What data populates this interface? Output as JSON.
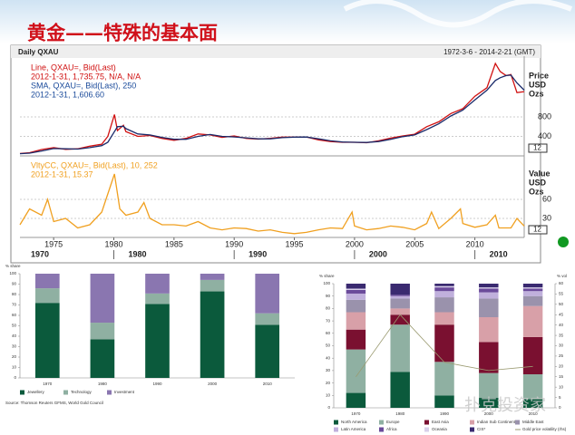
{
  "title": "黄金——特殊的基本面",
  "watermark": "扑克投资家",
  "chart_data": [
    {
      "type": "line",
      "header": "Daily QXAU",
      "date_range": "1972-3-6 - 2014-2-21 (GMT)",
      "y_label_lines": [
        "Price",
        "USD",
        "Ozs"
      ],
      "marker_label": "12",
      "legend_lines": [
        "Line, QXAU=, Bid(Last)",
        "2012-1-31, 1,735.75, N/A, N/A",
        "SMA, QXAU=, Bid(Last), 250",
        "2012-1-31, 1,606.60"
      ],
      "xlim": [
        1972.2,
        2014.1
      ],
      "ylim": [
        0,
        1900
      ],
      "yticks": [
        400,
        800
      ],
      "grid": true,
      "series": [
        {
          "name": "Line",
          "color": "#d01010",
          "x": [
            1972.2,
            1973,
            1974,
            1975,
            1976,
            1977,
            1978,
            1979,
            1979.5,
            1980.05,
            1980.3,
            1980.8,
            1981,
            1982,
            1983,
            1984,
            1985,
            1986,
            1987,
            1988,
            1989,
            1990,
            1991,
            1992,
            1993,
            1994,
            1995,
            1996,
            1997,
            1998,
            1999,
            2000,
            2001,
            2002,
            2003,
            2004,
            2005,
            2006,
            2007,
            2008,
            2009,
            2010,
            2011,
            2011.7,
            2012.1,
            2012.6,
            2013,
            2013.5,
            2014.1
          ],
          "values": [
            48,
            65,
            130,
            170,
            135,
            145,
            200,
            240,
            400,
            850,
            520,
            630,
            500,
            400,
            420,
            360,
            320,
            360,
            450,
            430,
            380,
            410,
            360,
            345,
            360,
            385,
            385,
            390,
            330,
            295,
            280,
            280,
            270,
            310,
            365,
            410,
            445,
            600,
            700,
            870,
            970,
            1225,
            1400,
            1900,
            1735,
            1650,
            1670,
            1300,
            1320
          ]
        },
        {
          "name": "SMA",
          "color": "#1a2a6a",
          "x": [
            1972.2,
            1973,
            1974,
            1975,
            1976,
            1977,
            1978,
            1979,
            1979.5,
            1980.05,
            1980.3,
            1980.8,
            1981,
            1982,
            1983,
            1984,
            1985,
            1986,
            1987,
            1988,
            1989,
            1990,
            1991,
            1992,
            1993,
            1994,
            1995,
            1996,
            1997,
            1998,
            1999,
            2000,
            2001,
            2002,
            2003,
            2004,
            2005,
            2006,
            2007,
            2008,
            2009,
            2010,
            2011,
            2011.7,
            2012.1,
            2012.6,
            2013,
            2013.5,
            2014.1
          ],
          "values": [
            45,
            55,
            100,
            150,
            145,
            140,
            170,
            210,
            280,
            500,
            600,
            610,
            560,
            450,
            430,
            380,
            340,
            340,
            400,
            440,
            400,
            390,
            370,
            350,
            350,
            375,
            385,
            388,
            350,
            310,
            285,
            280,
            275,
            295,
            340,
            395,
            430,
            540,
            660,
            820,
            940,
            1150,
            1350,
            1550,
            1606,
            1650,
            1660,
            1500,
            1350
          ]
        }
      ]
    },
    {
      "type": "line",
      "y_label_lines": [
        "Value",
        "USD",
        "Ozs"
      ],
      "marker_label": "12",
      "legend_lines": [
        "VltyCC, QXAU=, Bid(Last), 10, 252",
        "2012-1-31, 15.37"
      ],
      "xlim": [
        1972.2,
        2014.1
      ],
      "ylim": [
        0,
        120
      ],
      "yticks": [
        30,
        60
      ],
      "grid": true,
      "xticks": [
        1975,
        1980,
        1985,
        1990,
        1995,
        2000,
        2005,
        2010
      ],
      "decade_ticks": [
        1970,
        1980,
        1990,
        2000,
        2010
      ],
      "series": [
        {
          "name": "VltyCC",
          "color": "#f0a020",
          "x": [
            1972.2,
            1973,
            1974,
            1974.5,
            1975,
            1976,
            1977,
            1978,
            1979,
            1980.05,
            1980.5,
            1981,
            1982,
            1982.5,
            1983,
            1984,
            1985,
            1986,
            1987,
            1988,
            1989,
            1990,
            1991,
            1992,
            1993,
            1994,
            1995,
            1996,
            1997,
            1998,
            1999,
            1999.8,
            2000,
            2001,
            2002,
            2003,
            2004,
            2005,
            2006,
            2006.4,
            2007,
            2008,
            2008.8,
            2009,
            2010,
            2011,
            2011.7,
            2012,
            2013,
            2013.5,
            2014.1
          ],
          "values": [
            20,
            45,
            35,
            60,
            25,
            30,
            15,
            20,
            40,
            100,
            45,
            35,
            40,
            55,
            30,
            20,
            20,
            18,
            25,
            15,
            12,
            15,
            14,
            10,
            12,
            8,
            6,
            8,
            12,
            15,
            14,
            40,
            18,
            12,
            14,
            18,
            16,
            12,
            22,
            40,
            14,
            30,
            45,
            22,
            16,
            20,
            35,
            15,
            15,
            30,
            18
          ]
        }
      ]
    },
    {
      "type": "stacked_bar",
      "y_label": "% share",
      "source": "Source: Thomson Reuters GFMS, World Gold Council",
      "categories": [
        "1970",
        "1980",
        "1990",
        "2000",
        "2010"
      ],
      "ylim": [
        0,
        100
      ],
      "yticks": [
        0,
        10,
        20,
        30,
        40,
        50,
        60,
        70,
        80,
        90,
        100
      ],
      "series": [
        {
          "name": "Jewellery",
          "color": "#0b5a3c",
          "values": [
            72,
            37,
            71,
            83,
            51
          ]
        },
        {
          "name": "Technology",
          "color": "#8fb0a2",
          "values": [
            14,
            16,
            10,
            11,
            11
          ]
        },
        {
          "name": "Investment",
          "color": "#8a76b0",
          "values": [
            14,
            47,
            19,
            6,
            38
          ]
        }
      ]
    },
    {
      "type": "stacked_bar",
      "y_label": "% share",
      "y2_label": "% vol",
      "categories": [
        "1970",
        "1980",
        "1990",
        "2000",
        "2010"
      ],
      "ylim": [
        0,
        100
      ],
      "yticks": [
        0,
        10,
        20,
        30,
        40,
        50,
        60,
        70,
        80,
        90,
        100
      ],
      "y2lim": [
        0,
        60
      ],
      "y2ticks": [
        0,
        5,
        10,
        15,
        20,
        25,
        30,
        35,
        40,
        45,
        50,
        55,
        60
      ],
      "series": [
        {
          "name": "North America",
          "color": "#0b5a3c",
          "values": [
            12,
            29,
            10,
            8,
            7
          ]
        },
        {
          "name": "Europe",
          "color": "#8fb0a2",
          "values": [
            35,
            38,
            27,
            20,
            20
          ]
        },
        {
          "name": "East Asia",
          "color": "#7a1030",
          "values": [
            16,
            8,
            30,
            25,
            30
          ]
        },
        {
          "name": "Indian Sub Continent",
          "color": "#d8a0a8",
          "values": [
            14,
            5,
            10,
            20,
            25
          ]
        },
        {
          "name": "Middle East",
          "color": "#9a92ac",
          "values": [
            10,
            8,
            12,
            15,
            8
          ]
        },
        {
          "name": "Latin America",
          "color": "#c0b0dc",
          "values": [
            5,
            2,
            5,
            5,
            4
          ]
        },
        {
          "name": "Africa",
          "color": "#6a4a9a",
          "values": [
            3,
            1,
            3,
            3,
            2
          ]
        },
        {
          "name": "Oceania",
          "color": "#d8d0ea",
          "values": [
            1,
            0,
            1,
            1,
            1
          ]
        },
        {
          "name": "CIS*",
          "color": "#3a2a70",
          "values": [
            4,
            9,
            2,
            3,
            3
          ]
        },
        {
          "name": "Gold price volatility (rhs)",
          "color": "#9a9a70",
          "axis": "y2",
          "values": [
            15,
            45,
            22,
            18,
            20
          ]
        }
      ]
    }
  ]
}
